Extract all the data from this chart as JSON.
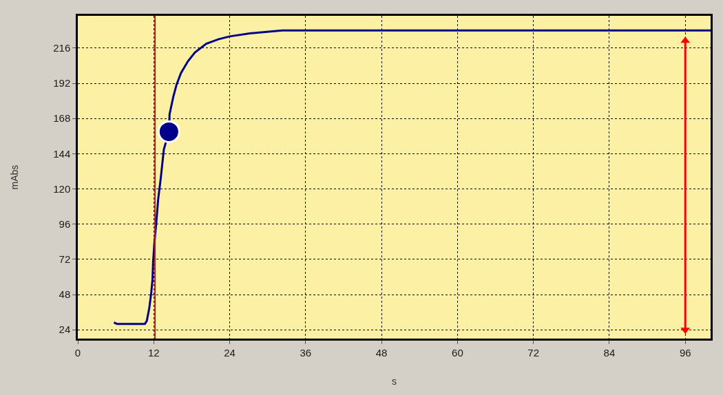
{
  "chart_data": {
    "type": "line",
    "xlabel": "s",
    "ylabel": "mAbs",
    "xlim": [
      0,
      100
    ],
    "ylim": [
      18,
      238
    ],
    "xticks": [
      0,
      12,
      24,
      36,
      48,
      60,
      72,
      84,
      96
    ],
    "yticks": [
      24,
      48,
      72,
      96,
      120,
      144,
      168,
      192,
      216
    ],
    "series": [
      {
        "type": "line",
        "color": "#00008b",
        "x": [
          5.7,
          6.2,
          7.6,
          10.6,
          10.9,
          11.3,
          11.6,
          11.8,
          11.9,
          12.1,
          12.4,
          12.7,
          13.1,
          13.6,
          14.4,
          14.5,
          15.1,
          15.6,
          16.3,
          17.4,
          18.5,
          20.3,
          22.2,
          24.0,
          27.2,
          32.3,
          38.9,
          100
        ],
        "values": [
          29,
          28,
          28,
          28,
          30,
          39,
          49,
          58,
          70,
          83,
          97,
          113,
          127,
          147,
          159,
          171,
          183,
          191,
          199,
          207,
          213,
          219,
          222,
          224,
          226,
          228,
          228,
          228
        ]
      },
      {
        "type": "scatter",
        "marker": "circle",
        "color": "#00008b",
        "x": [
          14.4
        ],
        "values": [
          159
        ]
      },
      {
        "marker": "triangle",
        "color": "#ff0000",
        "x": [
          96,
          96
        ],
        "values": [
          24,
          221
        ]
      }
    ],
    "ref_lines": [
      {
        "axis": "x",
        "value": 12.2,
        "color": "#b22222",
        "line_style": "solid"
      }
    ],
    "grid": true,
    "line_style": "solid"
  }
}
